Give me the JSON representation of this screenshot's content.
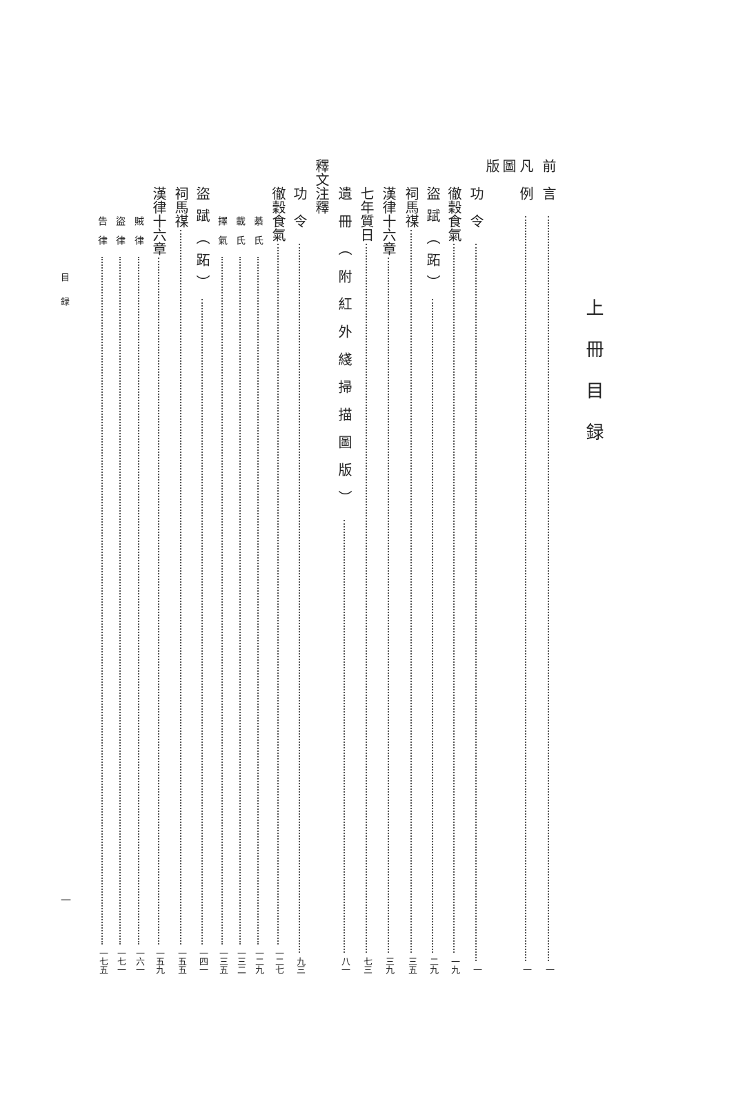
{
  "title": "上冊目録",
  "running_head": "目録",
  "folio": "一",
  "entries": [
    {
      "label": "前言",
      "page": "一",
      "level": 0
    },
    {
      "label": "凡例",
      "page": "一",
      "level": 0
    },
    {
      "label": "圖版",
      "page": "",
      "level": 0
    },
    {
      "label": "功令",
      "page": "一",
      "level": 1
    },
    {
      "label": "徹穀食氣",
      "page": "一九",
      "level": 1
    },
    {
      "label": "盜䟼（跖）",
      "page": "二九",
      "level": 1
    },
    {
      "label": "祠馬禖",
      "page": "三五",
      "level": 1
    },
    {
      "label": "漢律十六章",
      "page": "三九",
      "level": 1
    },
    {
      "label": "七年質日",
      "page": "七三",
      "level": 1
    },
    {
      "label": "遺冊（附紅外綫掃描圖版）",
      "page": "八一",
      "level": 1
    },
    {
      "label": "釋文注釋",
      "page": "",
      "level": 0
    },
    {
      "label": "功令",
      "page": "九三",
      "level": 1
    },
    {
      "label": "徹穀食氣",
      "page": "一二七",
      "level": 1
    },
    {
      "label": "綦氏",
      "page": "一二九",
      "level": 2
    },
    {
      "label": "載氏",
      "page": "一三二",
      "level": 2
    },
    {
      "label": "擇氣",
      "page": "一三五",
      "level": 2
    },
    {
      "label": "盜䟼（跖）",
      "page": "一四一",
      "level": 1
    },
    {
      "label": "祠馬禖",
      "page": "一五五",
      "level": 1
    },
    {
      "label": "漢律十六章",
      "page": "一五九",
      "level": 1
    },
    {
      "label": "賊律",
      "page": "一六一",
      "level": 2
    },
    {
      "label": "盜律",
      "page": "一七一",
      "level": 2
    },
    {
      "label": "告律",
      "page": "一七五",
      "level": 2
    }
  ]
}
